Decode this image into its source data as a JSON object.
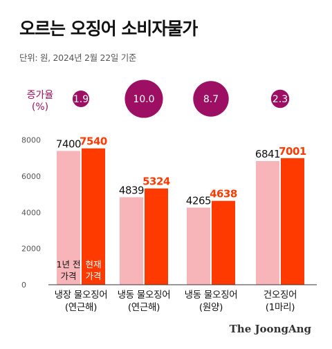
{
  "title": "오르는 오징어 소비자물가",
  "subtitle": "단위: 원, 2024년 2월 22일 기준",
  "rate_label": [
    "증가율",
    "(%)"
  ],
  "source": "The JoongAng",
  "colors": {
    "previous": "#f8b5b9",
    "current": "#ff3a00",
    "bubble": "#9c0f62",
    "axis": "#333333"
  },
  "chart_data": {
    "type": "bar",
    "categories": [
      [
        "냉장 물오징어",
        "(연근해)"
      ],
      [
        "냉동 물오징어",
        "(연근해)"
      ],
      [
        "냉동 물오징어",
        "(원양)"
      ],
      [
        "건오징어",
        "(1마리)"
      ]
    ],
    "series": [
      {
        "name": "1년 전 가격",
        "values": [
          7400,
          4839,
          4265,
          6841
        ]
      },
      {
        "name": "현재 가격",
        "values": [
          7540,
          5324,
          4638,
          7001
        ]
      }
    ],
    "series_in_bar_labels": [
      [
        "1년 전",
        "가격"
      ],
      [
        "현재",
        "가격"
      ]
    ],
    "growth_rate": {
      "label": "증가율 (%)",
      "values": [
        "1.9",
        "10.0",
        "8.7",
        "2.3"
      ]
    },
    "yticks": [
      0,
      2000,
      4000,
      6000,
      8000
    ],
    "ylim": [
      0,
      8600
    ],
    "grid": false,
    "legend": "inside first bars"
  }
}
